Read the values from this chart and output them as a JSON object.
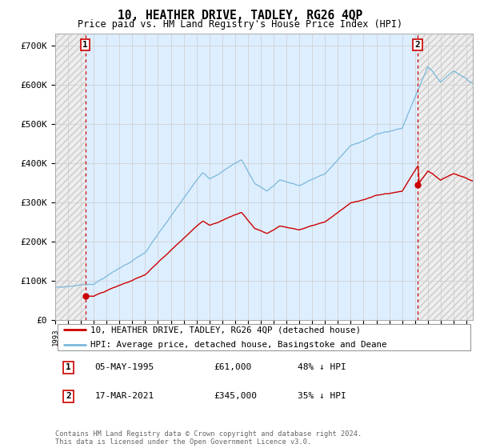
{
  "title": "10, HEATHER DRIVE, TADLEY, RG26 4QP",
  "subtitle": "Price paid vs. HM Land Registry's House Price Index (HPI)",
  "legend_line1": "10, HEATHER DRIVE, TADLEY, RG26 4QP (detached house)",
  "legend_line2": "HPI: Average price, detached house, Basingstoke and Deane",
  "sale1_label": "1",
  "sale1_date": "05-MAY-1995",
  "sale1_price": "£61,000",
  "sale1_hpi": "48% ↓ HPI",
  "sale1_year": 1995.35,
  "sale1_value": 61000,
  "sale2_label": "2",
  "sale2_date": "17-MAR-2021",
  "sale2_price": "£345,000",
  "sale2_hpi": "35% ↓ HPI",
  "sale2_year": 2021.21,
  "sale2_value": 345000,
  "hpi_color": "#7ab8d9",
  "price_color": "#cc0000",
  "marker_color": "#cc0000",
  "dashed_color": "#cc0000",
  "ylim": [
    0,
    730000
  ],
  "xlim_start": 1993.0,
  "xlim_end": 2025.5,
  "copyright": "Contains HM Land Registry data © Crown copyright and database right 2024.\nThis data is licensed under the Open Government Licence v3.0.",
  "yticks": [
    0,
    100000,
    200000,
    300000,
    400000,
    500000,
    600000,
    700000
  ],
  "ytick_labels": [
    "£0",
    "£100K",
    "£200K",
    "£300K",
    "£400K",
    "£500K",
    "£600K",
    "£700K"
  ],
  "mid_bg_color": "#ddeeff",
  "hatch_face_color": "#eeeeee",
  "hatch_edge_color": "#cccccc"
}
